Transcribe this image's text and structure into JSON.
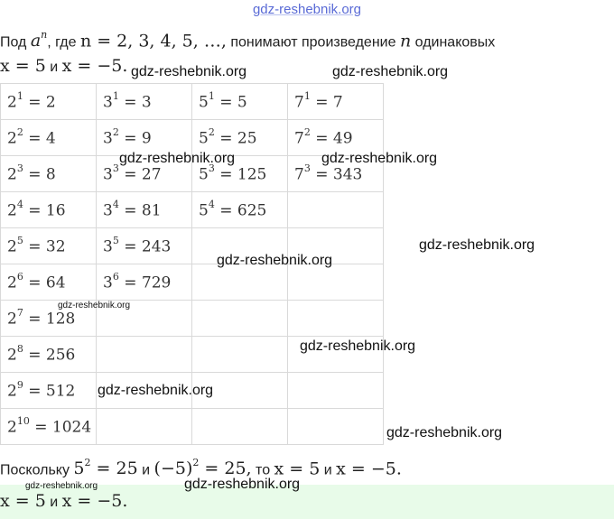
{
  "header": {
    "site": "gdz-reshebnik.org"
  },
  "intro": {
    "line1_prefix": "Под ",
    "line1_math_a": "a",
    "line1_math_n": "n",
    "line1_middle": ", где ",
    "line1_math_values": "n = 2,  3,  4,  5,  …,",
    "line1_suffix": " понимают произведение ",
    "line1_math_n2": "n",
    "line1_end": " одинаковых",
    "line2_math1": "x = 5",
    "line2_and": " и ",
    "line2_math2": "x = −5."
  },
  "table": {
    "rows": [
      [
        {
          "b": "2",
          "e": "1",
          "v": "= 2"
        },
        {
          "b": "3",
          "e": "1",
          "v": "= 3"
        },
        {
          "b": "5",
          "e": "1",
          "v": "= 5"
        },
        {
          "b": "7",
          "e": "1",
          "v": "= 7"
        }
      ],
      [
        {
          "b": "2",
          "e": "2",
          "v": "= 4"
        },
        {
          "b": "3",
          "e": "2",
          "v": "= 9"
        },
        {
          "b": "5",
          "e": "2",
          "v": "= 25"
        },
        {
          "b": "7",
          "e": "2",
          "v": "= 49"
        }
      ],
      [
        {
          "b": "2",
          "e": "3",
          "v": "= 8"
        },
        {
          "b": "3",
          "e": "3",
          "v": "= 27"
        },
        {
          "b": "5",
          "e": "3",
          "v": "= 125"
        },
        {
          "b": "7",
          "e": "3",
          "v": "= 343"
        }
      ],
      [
        {
          "b": "2",
          "e": "4",
          "v": "= 16"
        },
        {
          "b": "3",
          "e": "4",
          "v": "= 81"
        },
        {
          "b": "5",
          "e": "4",
          "v": "= 625"
        },
        null
      ],
      [
        {
          "b": "2",
          "e": "5",
          "v": "= 32"
        },
        {
          "b": "3",
          "e": "5",
          "v": "= 243"
        },
        null,
        null
      ],
      [
        {
          "b": "2",
          "e": "6",
          "v": "= 64"
        },
        {
          "b": "3",
          "e": "6",
          "v": "= 729"
        },
        null,
        null
      ],
      [
        {
          "b": "2",
          "e": "7",
          "v": "= 128"
        },
        null,
        null,
        null
      ],
      [
        {
          "b": "2",
          "e": "8",
          "v": "= 256"
        },
        null,
        null,
        null
      ],
      [
        {
          "b": "2",
          "e": "9",
          "v": "= 512"
        },
        null,
        null,
        null
      ],
      [
        {
          "b": "2",
          "e": "10",
          "v": "= 1024"
        },
        null,
        null,
        null
      ]
    ]
  },
  "conclusion": {
    "prefix": "Поскольку ",
    "math1": "5",
    "math1_exp": "2",
    "math1_rest": " = 25",
    "and1": " и ",
    "math2": "(−5)",
    "math2_exp": "2",
    "math2_rest": " = 25,",
    "then": " то ",
    "math3": "x = 5",
    "and2": " и ",
    "math4": "x = −5."
  },
  "answer": {
    "math1": "x = 5",
    "and": " и ",
    "math2": "x = −5."
  },
  "watermarks": [
    "gdz-reshebnik.org",
    "gdz-reshebnik.org",
    "gdz-reshebnik.org",
    "gdz-reshebnik.org",
    "gdz-reshebnik.org",
    "gdz-reshebnik.org",
    "gdz-reshebnik.org",
    "gdz-reshebnik.org",
    "gdz-reshebnik.org",
    "gdz-reshebnik.org",
    "gdz-reshebnik.org",
    "gdz-reshebnik.org"
  ]
}
